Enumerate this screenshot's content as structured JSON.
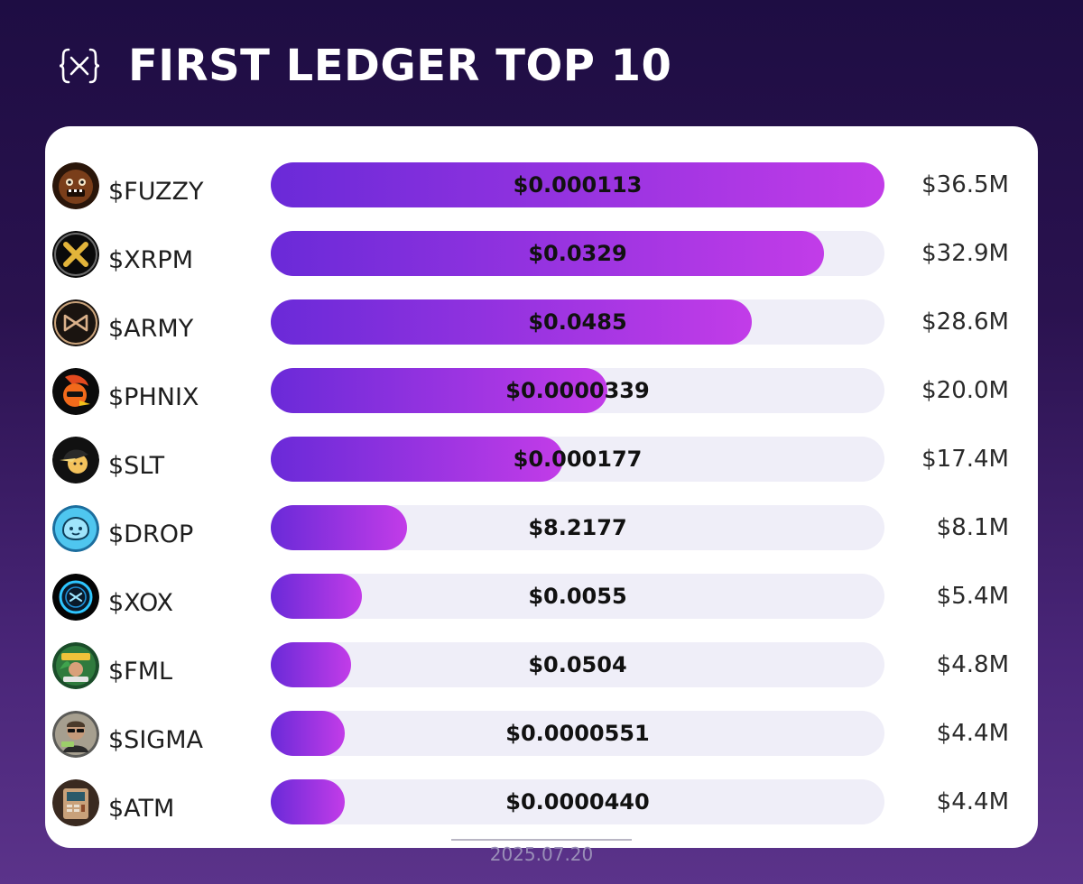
{
  "header": {
    "title": "FIRST LEDGER TOP 10"
  },
  "colors": {
    "bar_start": "#6a2ad8",
    "bar_end": "#c23ce8",
    "track": "#efeef8"
  },
  "chart_data": {
    "type": "bar",
    "orientation": "horizontal",
    "title": "FIRST LEDGER TOP 10",
    "date": "2025.07.20",
    "xlim": [
      0,
      36.5
    ],
    "unit": "M",
    "items": [
      {
        "ticker": "$FUZZY",
        "price": "$0.000113",
        "mcap": "$36.5M",
        "value": 36.5,
        "icon": "fuzzy-bear-icon"
      },
      {
        "ticker": "$XRPM",
        "price": "$0.0329",
        "mcap": "$32.9M",
        "value": 32.9,
        "icon": "xrpm-x-icon"
      },
      {
        "ticker": "$ARMY",
        "price": "$0.0485",
        "mcap": "$28.6M",
        "value": 28.6,
        "icon": "army-bow-icon"
      },
      {
        "ticker": "$PHNIX",
        "price": "$0.0000339",
        "mcap": "$20.0M",
        "value": 20.0,
        "icon": "phoenix-bird-icon"
      },
      {
        "ticker": "$SLT",
        "price": "$0.000177",
        "mcap": "$17.4M",
        "value": 17.4,
        "icon": "slt-cap-face-icon"
      },
      {
        "ticker": "$DROP",
        "price": "$8.2177",
        "mcap": "$8.1M",
        "value": 8.1,
        "icon": "drop-blob-icon"
      },
      {
        "ticker": "$XOX",
        "price": "$0.0055",
        "mcap": "$5.4M",
        "value": 5.4,
        "icon": "xox-ring-icon"
      },
      {
        "ticker": "$FML",
        "price": "$0.0504",
        "mcap": "$4.8M",
        "value": 4.8,
        "icon": "fml-florida-man-icon"
      },
      {
        "ticker": "$SIGMA",
        "price": "$0.0000551",
        "mcap": "$4.4M",
        "value": 4.4,
        "icon": "sigma-man-icon"
      },
      {
        "ticker": "$ATM",
        "price": "$0.0000440",
        "mcap": "$4.4M",
        "value": 4.4,
        "icon": "atm-machine-icon"
      }
    ]
  }
}
